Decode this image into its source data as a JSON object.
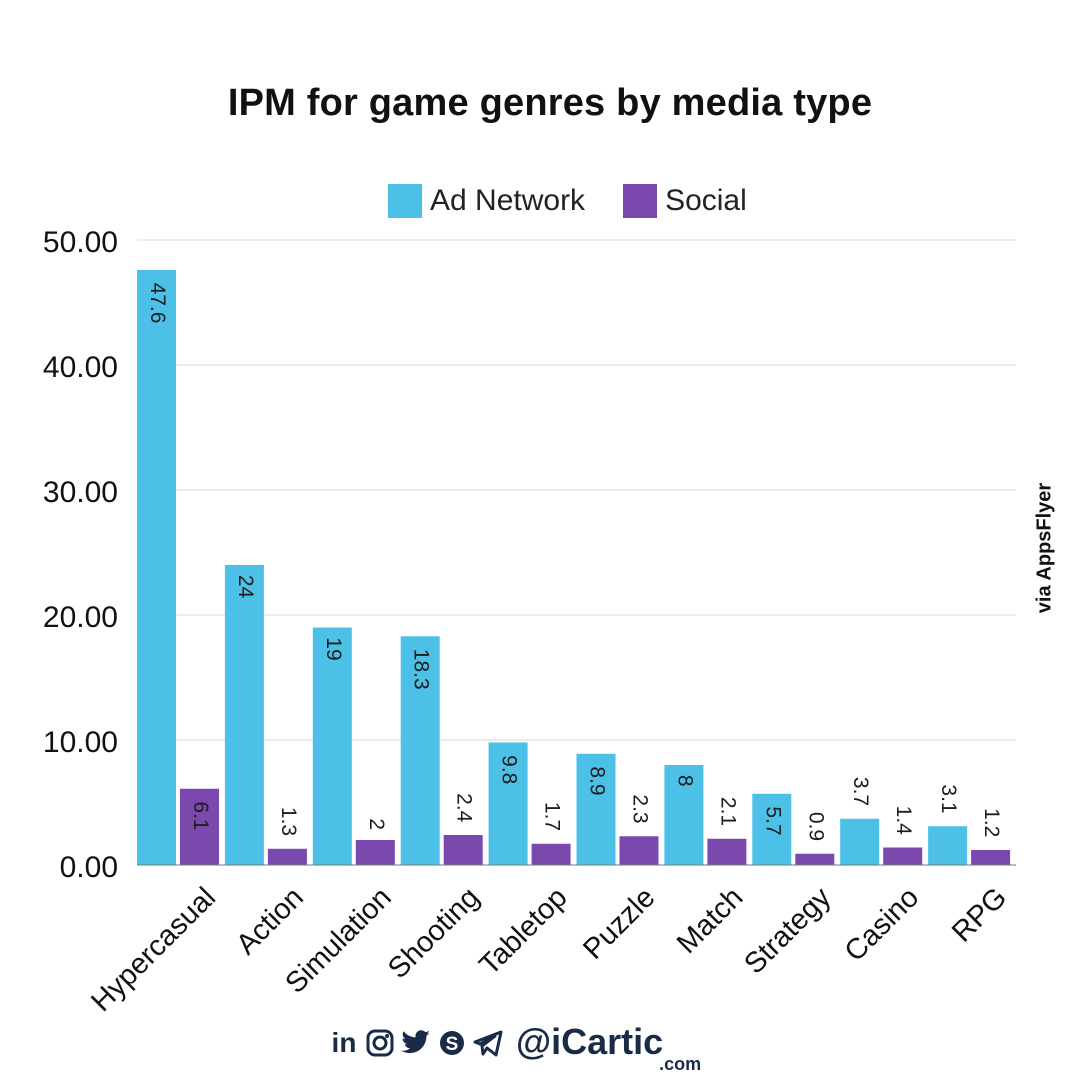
{
  "colors": {
    "ad_network": "#4dc0e8",
    "social": "#7b48ad",
    "grid": "#d9d9d9",
    "text": "#111111",
    "footer": "#1a2b47"
  },
  "source_text": "via AppsFlyer",
  "footer": {
    "handle": "@iCartic",
    "domain": ".com",
    "icons": [
      "linkedin-icon",
      "instagram-icon",
      "twitter-icon",
      "skype-icon",
      "telegram-icon"
    ]
  },
  "chart_data": {
    "type": "bar",
    "title": "IPM for game genres by media type",
    "xlabel": "",
    "ylabel": "",
    "categories": [
      "Hypercasual",
      "Action",
      "Simulation",
      "Shooting",
      "Tabletop",
      "Puzzle",
      "Match",
      "Strategy",
      "Casino",
      "RPG"
    ],
    "series": [
      {
        "name": "Ad Network",
        "values": [
          47.6,
          24,
          19,
          18.3,
          9.8,
          8.9,
          8,
          5.7,
          3.7,
          3.1
        ],
        "labels": [
          "47.6",
          "24",
          "19",
          "18.3",
          "9.8",
          "8.9",
          "8",
          "5.7",
          "3.7",
          "3.1"
        ]
      },
      {
        "name": "Social",
        "values": [
          6.1,
          1.3,
          2,
          2.4,
          1.7,
          2.3,
          2.1,
          0.9,
          1.4,
          1.2
        ],
        "labels": [
          "6.1",
          "1.3",
          "2",
          "2.4",
          "1.7",
          "2.3",
          "2.1",
          "0.9",
          "1.4",
          "1.2"
        ]
      }
    ],
    "ylim": [
      0,
      50
    ],
    "yticks": [
      "0.00",
      "10.00",
      "20.00",
      "30.00",
      "40.00",
      "50.00"
    ],
    "grid": true,
    "legend": "top-center"
  }
}
